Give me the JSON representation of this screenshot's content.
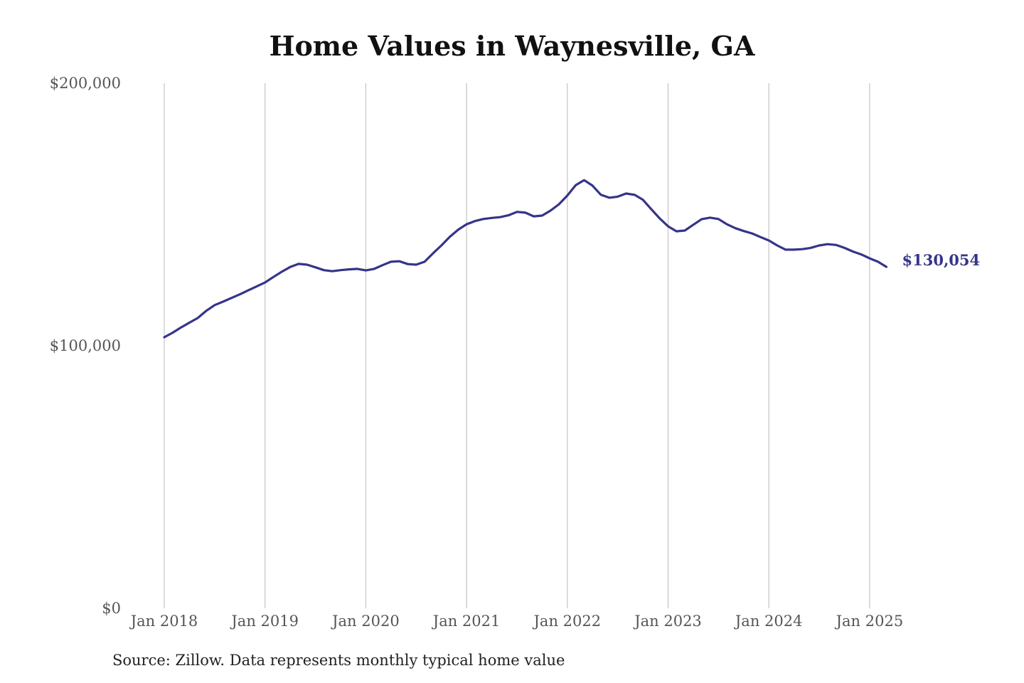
{
  "chart_data": {
    "type": "line",
    "title": "Home Values in Waynesville, GA",
    "source": "Source: Zillow. Data represents monthly typical home value",
    "xlabel": "",
    "ylabel": "",
    "ylim": [
      0,
      200000
    ],
    "y_ticks": [
      0,
      100000,
      200000
    ],
    "y_tick_labels": [
      "$0",
      "$100,000",
      "$200,000"
    ],
    "x_tick_labels": [
      "Jan 2018",
      "Jan 2019",
      "Jan 2020",
      "Jan 2021",
      "Jan 2022",
      "Jan 2023",
      "Jan 2024",
      "Jan 2025"
    ],
    "grid": "vertical",
    "x_start": "2018-01",
    "x_frequency": "monthly",
    "line_color": "#35348a",
    "end_label": "$130,054",
    "series": [
      {
        "values": [
          103250,
          105000,
          107000,
          108800,
          110600,
          113300,
          115500,
          116800,
          118200,
          119600,
          121100,
          122600,
          124100,
          126200,
          128200,
          130000,
          131200,
          130900,
          129900,
          128800,
          128400,
          128800,
          129100,
          129300,
          128700,
          129300,
          130700,
          132000,
          132200,
          131100,
          130900,
          132000,
          135200,
          138200,
          141500,
          144200,
          146300,
          147500,
          148300,
          148700,
          149000,
          149700,
          151000,
          150700,
          149300,
          149600,
          151500,
          153900,
          157200,
          161200,
          163100,
          161000,
          157500,
          156400,
          156800,
          158000,
          157500,
          155600,
          152000,
          148500,
          145500,
          143600,
          143900,
          146100,
          148200,
          148800,
          148300,
          146300,
          144800,
          143700,
          142800,
          141400,
          140100,
          138200,
          136600,
          136600,
          136800,
          137300,
          138200,
          138700,
          138400,
          137300,
          135900,
          134800,
          133300,
          132000,
          130054
        ]
      }
    ]
  }
}
